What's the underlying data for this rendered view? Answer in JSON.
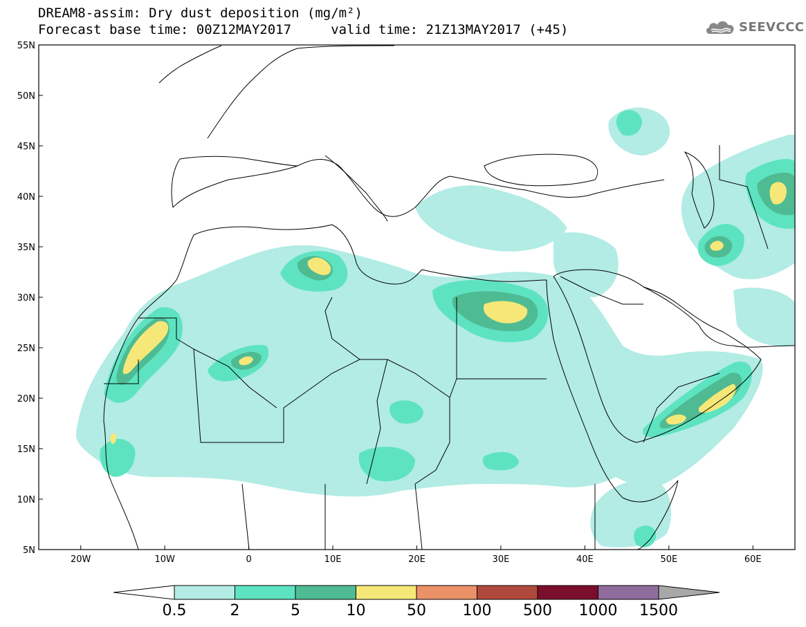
{
  "title_line1": "DREAM8-assim: Dry dust deposition (mg/m²)",
  "title_line2": "Forecast base time: 00Z12MAY2017     valid time: 21Z13MAY2017 (+45)",
  "logo": {
    "text": "SEEVCCC",
    "icon": "cloud-logo-icon"
  },
  "map": {
    "projection": "lat-lon",
    "lon_range": [
      -25,
      65
    ],
    "lat_range": [
      5,
      55
    ],
    "x_ticks": [
      "20W",
      "10W",
      "0",
      "10E",
      "20E",
      "30E",
      "40E",
      "50E",
      "60E"
    ],
    "y_ticks": [
      "55N",
      "50N",
      "45N",
      "40N",
      "35N",
      "30N",
      "25N",
      "20N",
      "15N",
      "10N",
      "5N"
    ]
  },
  "colorbar": {
    "labels": [
      "0.5",
      "2",
      "5",
      "10",
      "50",
      "100",
      "500",
      "1000",
      "1500"
    ],
    "colors": [
      "#b2ece4",
      "#5ee3c1",
      "#4fbb93",
      "#f6e878",
      "#eb9168",
      "#b0493d",
      "#7a0e2b",
      "#8e6c9c"
    ],
    "under_color": "#ffffff",
    "over_color": "#a8a8a8"
  },
  "regions": [
    {
      "name": "w-sahara-coast",
      "lon": -14.5,
      "lat": 24.5,
      "rx": 3.4,
      "ry": 5.0,
      "rot": -55,
      "level": 3
    },
    {
      "name": "e-algeria",
      "lon": 9.0,
      "lat": 32.5,
      "rx": 2.0,
      "ry": 1.4,
      "rot": 30,
      "level": 3
    },
    {
      "name": "egypt-nile",
      "lon": 32.0,
      "lat": 27.5,
      "rx": 3.2,
      "ry": 1.4,
      "rot": 0,
      "level": 3
    },
    {
      "name": "s-arabia-a",
      "lon": 55.5,
      "lat": 20.0,
      "rx": 2.6,
      "ry": 1.2,
      "rot": -30,
      "level": 3
    },
    {
      "name": "s-arabia-b",
      "lon": 51.0,
      "lat": 18.0,
      "rx": 1.3,
      "ry": 0.7,
      "rot": -25,
      "level": 3
    },
    {
      "name": "caspian-east",
      "lon": 64.0,
      "lat": 41.0,
      "rx": 1.2,
      "ry": 1.6,
      "rot": 0,
      "level": 3
    },
    {
      "name": "senegal",
      "lon": -16.0,
      "lat": 15.5,
      "rx": 0.4,
      "ry": 0.6,
      "rot": 0,
      "level": 3
    },
    {
      "name": "algeria-center",
      "lon": 0.0,
      "lat": 23.5,
      "rx": 1.3,
      "ry": 0.6,
      "rot": -35,
      "level": 3
    },
    {
      "name": "iran-north",
      "lon": 56.5,
      "lat": 35.0,
      "rx": 0.8,
      "ry": 0.6,
      "rot": 0,
      "level": 3
    }
  ]
}
